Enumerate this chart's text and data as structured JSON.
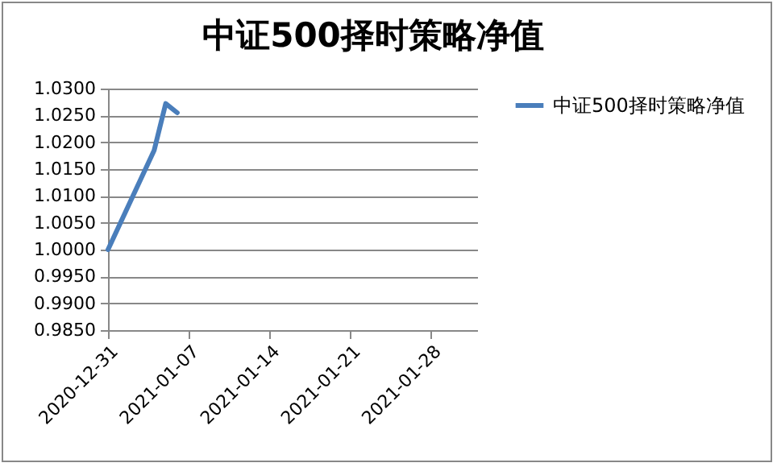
{
  "chart_data": {
    "type": "line",
    "title": "中证500择时策略净值",
    "x": [
      "2020-12-31",
      "2021-01-04",
      "2021-01-05",
      "2021-01-06"
    ],
    "series": [
      {
        "name": "中证500择时策略净值",
        "color": "#4a7ebb",
        "values": [
          1.0,
          1.0185,
          1.0272,
          1.0255
        ]
      }
    ],
    "xlim": [
      "2020-12-31",
      "2021-02-01"
    ],
    "xticks": [
      "2020-12-31",
      "2021-01-07",
      "2021-01-14",
      "2021-01-21",
      "2021-01-28"
    ],
    "ylim": [
      0.985,
      1.03
    ],
    "yticks": [
      {
        "value": 0.985,
        "label": "0.9850"
      },
      {
        "value": 0.99,
        "label": "0.9900"
      },
      {
        "value": 0.995,
        "label": "0.9950"
      },
      {
        "value": 1.0,
        "label": "1.0000"
      },
      {
        "value": 1.005,
        "label": "1.0050"
      },
      {
        "value": 1.01,
        "label": "1.0100"
      },
      {
        "value": 1.015,
        "label": "1.0150"
      },
      {
        "value": 1.02,
        "label": "1.0200"
      },
      {
        "value": 1.025,
        "label": "1.0250"
      },
      {
        "value": 1.03,
        "label": "1.0300"
      }
    ],
    "grid": "y",
    "legend": "right",
    "marker": "none",
    "line_style": "solid"
  }
}
